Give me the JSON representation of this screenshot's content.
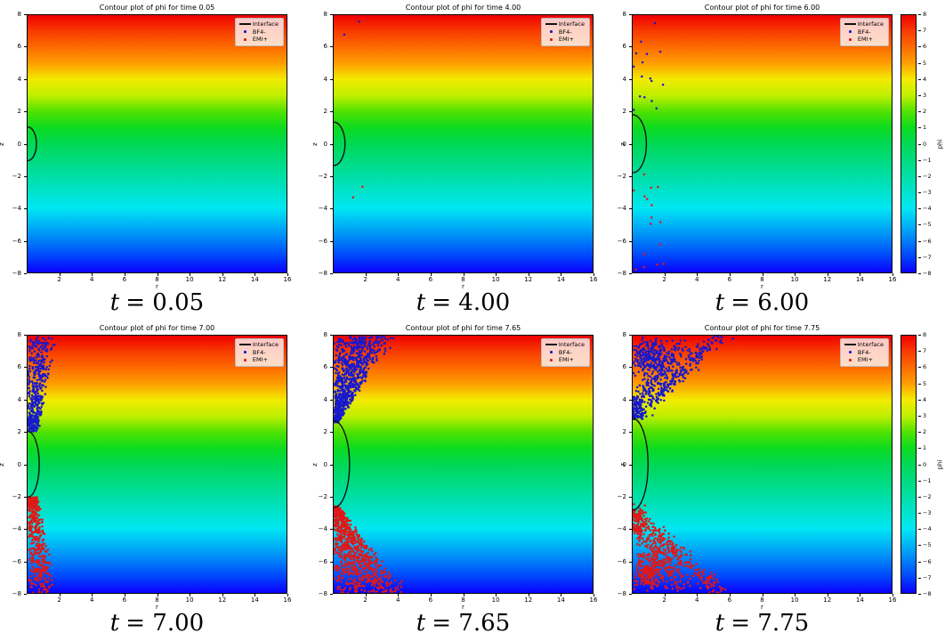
{
  "chart_data": {
    "type": "heatmap",
    "subtype": "2x3 grid of filled-contour potential fields with ion scatter overlays and droplet interface curve",
    "x_range": [
      0,
      16
    ],
    "y_range": [
      -8,
      8
    ],
    "xlabel": "r",
    "ylabel": "z",
    "xticks": [
      2,
      4,
      6,
      8,
      10,
      12,
      14,
      16
    ],
    "yticks": [
      8,
      6,
      4,
      2,
      0,
      -2,
      -4,
      -6,
      -8
    ],
    "field_description": "phi varies approximately linearly with z: phi=+8 (red) at top edge to phi=-8 (blue) at bottom edge",
    "colormap": {
      "name": "rainbow (red high, blue low)",
      "stops": [
        {
          "v": 8,
          "c": "#f00000"
        },
        {
          "v": 7,
          "c": "#fa3c00"
        },
        {
          "v": 6,
          "c": "#fe6c00"
        },
        {
          "v": 5,
          "c": "#ffa000"
        },
        {
          "v": 4,
          "c": "#f4ec00"
        },
        {
          "v": 3,
          "c": "#c0f000"
        },
        {
          "v": 2,
          "c": "#50e300"
        },
        {
          "v": 1,
          "c": "#0cdc20"
        },
        {
          "v": 0,
          "c": "#00d955"
        },
        {
          "v": -1,
          "c": "#00dc7e"
        },
        {
          "v": -2,
          "c": "#00e0a6"
        },
        {
          "v": -3,
          "c": "#00e4cd"
        },
        {
          "v": -4,
          "c": "#00e8f4"
        },
        {
          "v": -5,
          "c": "#00b5f7"
        },
        {
          "v": -6,
          "c": "#0080fa"
        },
        {
          "v": -7,
          "c": "#0044fd"
        },
        {
          "v": -8,
          "c": "#0c00ff"
        }
      ]
    },
    "colorbar": {
      "label": "phi",
      "ticks": [
        8,
        7,
        6,
        5,
        4,
        3,
        2,
        1,
        0,
        -1,
        -2,
        -3,
        -4,
        -5,
        -6,
        -7,
        -8
      ]
    },
    "legend": {
      "items": [
        {
          "label": "Interface",
          "marker": "line",
          "color": "#111111"
        },
        {
          "label": "BF4-",
          "marker": "dot",
          "color": "#1818cf"
        },
        {
          "label": "EMI+",
          "marker": "dot",
          "color": "#e01818"
        }
      ]
    },
    "panels": [
      {
        "title": "Contour plot of phi for time 0.05",
        "time": "0.05",
        "caption_sym": "t",
        "caption_rest": "= 0.05",
        "interface": {
          "rx": 0.55,
          "rz": 1.05
        },
        "has_colorbar": false,
        "scatter": []
      },
      {
        "title": "Contour plot of phi for time 4.00",
        "time": "4.00",
        "caption_sym": "t",
        "caption_rest": "= 4.00",
        "interface": {
          "rx": 0.7,
          "rz": 1.35
        },
        "has_colorbar": false,
        "scatter": [
          {
            "kind": "uniform",
            "color": "#1818cf",
            "n": 2,
            "r": [
              0.3,
              1.6
            ],
            "z": [
              6.5,
              7.6
            ]
          },
          {
            "kind": "uniform",
            "color": "#e01818",
            "n": 2,
            "r": [
              0.8,
              1.8
            ],
            "z": [
              -3.4,
              -2.6
            ]
          }
        ]
      },
      {
        "title": "Contour plot of phi for time 6.00",
        "time": "6.00",
        "caption_sym": "t",
        "caption_rest": "= 6.00",
        "interface": {
          "rx": 0.85,
          "rz": 1.8
        },
        "has_colorbar": true,
        "scatter": [
          {
            "kind": "uniform",
            "color": "#1818cf",
            "n": 16,
            "r": [
              0.05,
              2.0
            ],
            "z": [
              1.9,
              7.9
            ]
          },
          {
            "kind": "uniform",
            "color": "#e01818",
            "n": 16,
            "r": [
              0.05,
              2.0
            ],
            "z": [
              -7.9,
              -1.9
            ]
          }
        ]
      },
      {
        "title": "Contour plot of phi for time 7.00",
        "time": "7.00",
        "caption_sym": "t",
        "caption_rest": "= 7.00",
        "interface": {
          "rx": 0.72,
          "rz": 2.05
        },
        "has_colorbar": false,
        "scatter": [
          {
            "kind": "wedge",
            "color": "#1818cf",
            "n": 430,
            "z0": 2.05,
            "z1": 8.0,
            "w0": 0.55,
            "w1": 1.5,
            "bias": 1.25
          },
          {
            "kind": "wedge",
            "color": "#e01818",
            "n": 430,
            "z0": -2.05,
            "z1": -8.0,
            "w0": 0.55,
            "w1": 1.5,
            "bias": 1.25
          }
        ]
      },
      {
        "title": "Contour plot of phi for time 7.65",
        "time": "7.65",
        "caption_sym": "t",
        "caption_rest": "= 7.65",
        "interface": {
          "rx": 0.98,
          "rz": 2.7
        },
        "has_colorbar": false,
        "scatter": [
          {
            "kind": "wedge",
            "color": "#1818cf",
            "n": 820,
            "z0": 2.6,
            "z1": 8.0,
            "w0": 0.25,
            "w1": 3.3,
            "bias": 0.9
          },
          {
            "kind": "wedge",
            "color": "#e01818",
            "n": 820,
            "z0": -2.6,
            "z1": -8.0,
            "w0": 0.25,
            "w1": 3.9,
            "bias": 0.9
          }
        ]
      },
      {
        "title": "Contour plot of phi for time 7.75",
        "time": "7.75",
        "caption_sym": "t",
        "caption_rest": "= 7.75",
        "interface": {
          "rx": 0.95,
          "rz": 2.85
        },
        "has_colorbar": true,
        "scatter": [
          {
            "kind": "cloud",
            "color": "#1818cf",
            "n": 230,
            "r": [
              0.0,
              2.1
            ],
            "z": [
              5.3,
              8.0
            ]
          },
          {
            "kind": "streak",
            "color": "#1818cf",
            "n": 260,
            "x0": 0.15,
            "z0": 3.0,
            "x1": 5.4,
            "z1": 8.1,
            "w": 0.28
          },
          {
            "kind": "streak",
            "color": "#1818cf",
            "n": 180,
            "x0": 0.15,
            "z0": 3.6,
            "x1": 3.0,
            "z1": 7.6,
            "w": 0.3
          },
          {
            "kind": "uniform",
            "color": "#1818cf",
            "n": 70,
            "r": [
              0.02,
              0.6
            ],
            "z": [
              2.8,
              4.2
            ]
          },
          {
            "kind": "cloud",
            "color": "#e01818",
            "n": 230,
            "r": [
              0.0,
              2.1
            ],
            "z": [
              -8.0,
              -5.3
            ]
          },
          {
            "kind": "streak",
            "color": "#e01818",
            "n": 260,
            "x0": 0.15,
            "z0": -3.0,
            "x1": 5.4,
            "z1": -8.1,
            "w": 0.28
          },
          {
            "kind": "streak",
            "color": "#e01818",
            "n": 180,
            "x0": 0.15,
            "z0": -3.6,
            "x1": 3.0,
            "z1": -7.6,
            "w": 0.3
          },
          {
            "kind": "uniform",
            "color": "#e01818",
            "n": 70,
            "r": [
              0.02,
              0.6
            ],
            "z": [
              -4.2,
              -2.8
            ]
          }
        ]
      }
    ]
  }
}
